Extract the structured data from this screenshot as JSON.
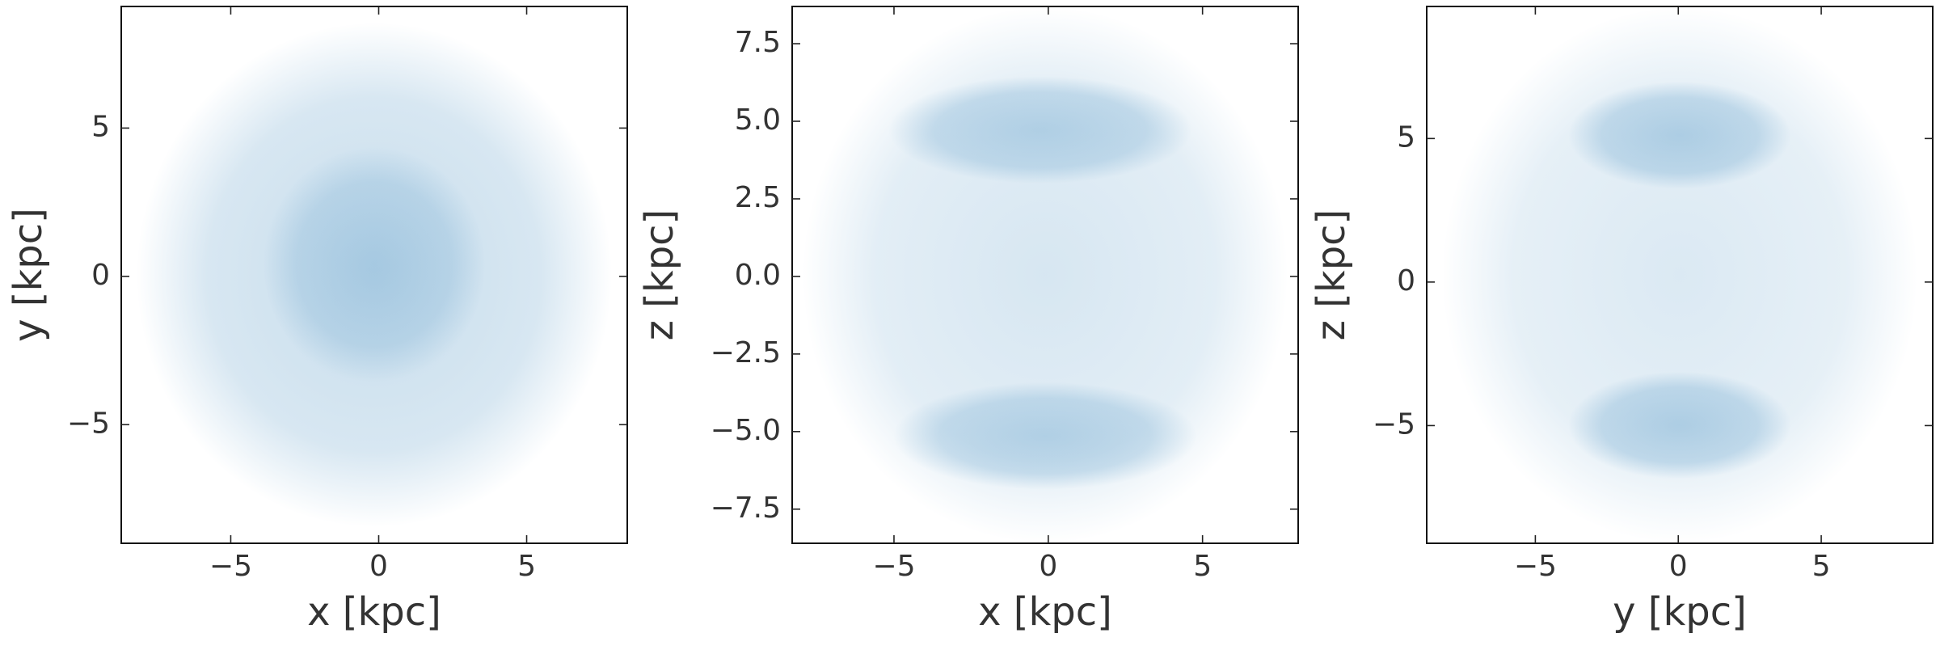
{
  "chart_data": [
    {
      "type": "scatter",
      "xlabel": "x [kpc]",
      "ylabel": "y [kpc]",
      "xlim": [
        -8.7,
        8.4
      ],
      "ylim": [
        -9.0,
        9.1
      ],
      "xticks": [
        {
          "value": -5,
          "label": "−5"
        },
        0,
        5
      ],
      "yticks": [
        {
          "value": -5,
          "label": "−5"
        },
        0,
        5
      ],
      "color": "#1f77b4"
    },
    {
      "type": "scatter",
      "xlabel": "x [kpc]",
      "ylabel": "z [kpc]",
      "xlim": [
        -8.3,
        8.1
      ],
      "ylim": [
        -8.6,
        8.7
      ],
      "xticks": [
        {
          "value": -5,
          "label": "−5"
        },
        0,
        5
      ],
      "yticks": [
        {
          "value": -7.5,
          "label": "−7.5"
        },
        {
          "value": -5,
          "label": "−5.0"
        },
        {
          "value": -2.5,
          "label": "−2.5"
        },
        {
          "value": 0,
          "label": "0.0"
        },
        2.5,
        {
          "value": 5,
          "label": "5.0"
        },
        7.5
      ],
      "color": "#1f77b4"
    },
    {
      "type": "scatter",
      "xlabel": "y [kpc]",
      "ylabel": "z [kpc]",
      "xlim": [
        -8.8,
        8.9
      ],
      "ylim": [
        -9.1,
        9.6
      ],
      "xticks": [
        {
          "value": -5,
          "label": "−5"
        },
        0,
        5
      ],
      "yticks": [
        {
          "value": -5,
          "label": "−5"
        },
        0,
        5
      ],
      "color": "#1f77b4"
    }
  ]
}
